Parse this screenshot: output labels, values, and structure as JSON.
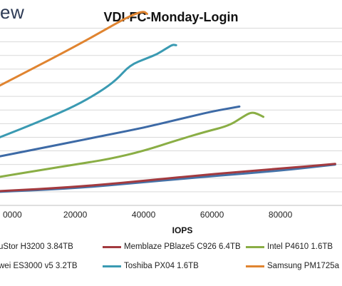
{
  "brand": {
    "text": "ew"
  },
  "chart_data": {
    "type": "line",
    "title": "VDI-FC-Monday-Login",
    "xlabel": "IOPS",
    "ylabel": "",
    "xlim": [
      -2000,
      98000
    ],
    "ylim": [
      0,
      13.5
    ],
    "x_ticks": [
      {
        "value": 0,
        "label": "0000"
      },
      {
        "value": 20000,
        "label": "20000"
      },
      {
        "value": 40000,
        "label": "40000"
      },
      {
        "value": 60000,
        "label": "60000"
      },
      {
        "value": 80000,
        "label": "80000"
      }
    ],
    "gridlines": [
      1,
      2,
      3,
      4,
      5,
      6,
      7,
      8,
      9,
      10,
      11,
      12,
      13
    ],
    "grid": true,
    "series": [
      {
        "name": "uStor H3200 3.84TB",
        "color": "#4472a8",
        "points": [
          [
            -2000,
            1.0
          ],
          [
            20000,
            1.25
          ],
          [
            40000,
            1.7
          ],
          [
            60000,
            2.15
          ],
          [
            80000,
            2.55
          ],
          [
            96000,
            3.0
          ]
        ]
      },
      {
        "name": "Memblaze PBlaze5 C926 6.4TB",
        "color": "#a33a3f",
        "points": [
          [
            -2000,
            1.05
          ],
          [
            20000,
            1.35
          ],
          [
            40000,
            1.8
          ],
          [
            60000,
            2.3
          ],
          [
            80000,
            2.7
          ],
          [
            96000,
            3.05
          ]
        ]
      },
      {
        "name": "Intel P4610 1.6TB",
        "color": "#8aae45",
        "points": [
          [
            -2000,
            2.1
          ],
          [
            10000,
            2.6
          ],
          [
            20000,
            3.0
          ],
          [
            30000,
            3.4
          ],
          [
            40000,
            4.0
          ],
          [
            50000,
            4.8
          ],
          [
            58000,
            5.4
          ],
          [
            65000,
            5.85
          ],
          [
            69000,
            6.5
          ],
          [
            71500,
            6.85
          ],
          [
            73500,
            6.7
          ],
          [
            75000,
            6.5
          ]
        ]
      },
      {
        "name": "wei ES3000 v5 3.2TB",
        "color": "#3d6aa6",
        "points": [
          [
            -2000,
            3.6
          ],
          [
            10000,
            4.2
          ],
          [
            20000,
            4.7
          ],
          [
            30000,
            5.2
          ],
          [
            40000,
            5.7
          ],
          [
            50000,
            6.3
          ],
          [
            60000,
            6.9
          ],
          [
            68000,
            7.25
          ]
        ]
      },
      {
        "name": "Toshiba PX04 1.6TB",
        "color": "#3a9ab2",
        "points": [
          [
            -2000,
            5.0
          ],
          [
            10000,
            6.2
          ],
          [
            20000,
            7.3
          ],
          [
            27000,
            8.3
          ],
          [
            32000,
            9.2
          ],
          [
            36000,
            10.3
          ],
          [
            41000,
            10.8
          ],
          [
            44000,
            11.1
          ],
          [
            46500,
            11.5
          ],
          [
            48500,
            11.8
          ],
          [
            49500,
            11.75
          ]
        ]
      },
      {
        "name": "Samsung PM1725a 1.6TB",
        "color": "#e08430",
        "points": [
          [
            -2000,
            8.8
          ],
          [
            8000,
            10.1
          ],
          [
            18000,
            11.4
          ],
          [
            26000,
            12.5
          ],
          [
            33000,
            13.5
          ],
          [
            37000,
            14.0
          ],
          [
            40000,
            14.25
          ],
          [
            41000,
            14.05
          ]
        ]
      }
    ]
  }
}
